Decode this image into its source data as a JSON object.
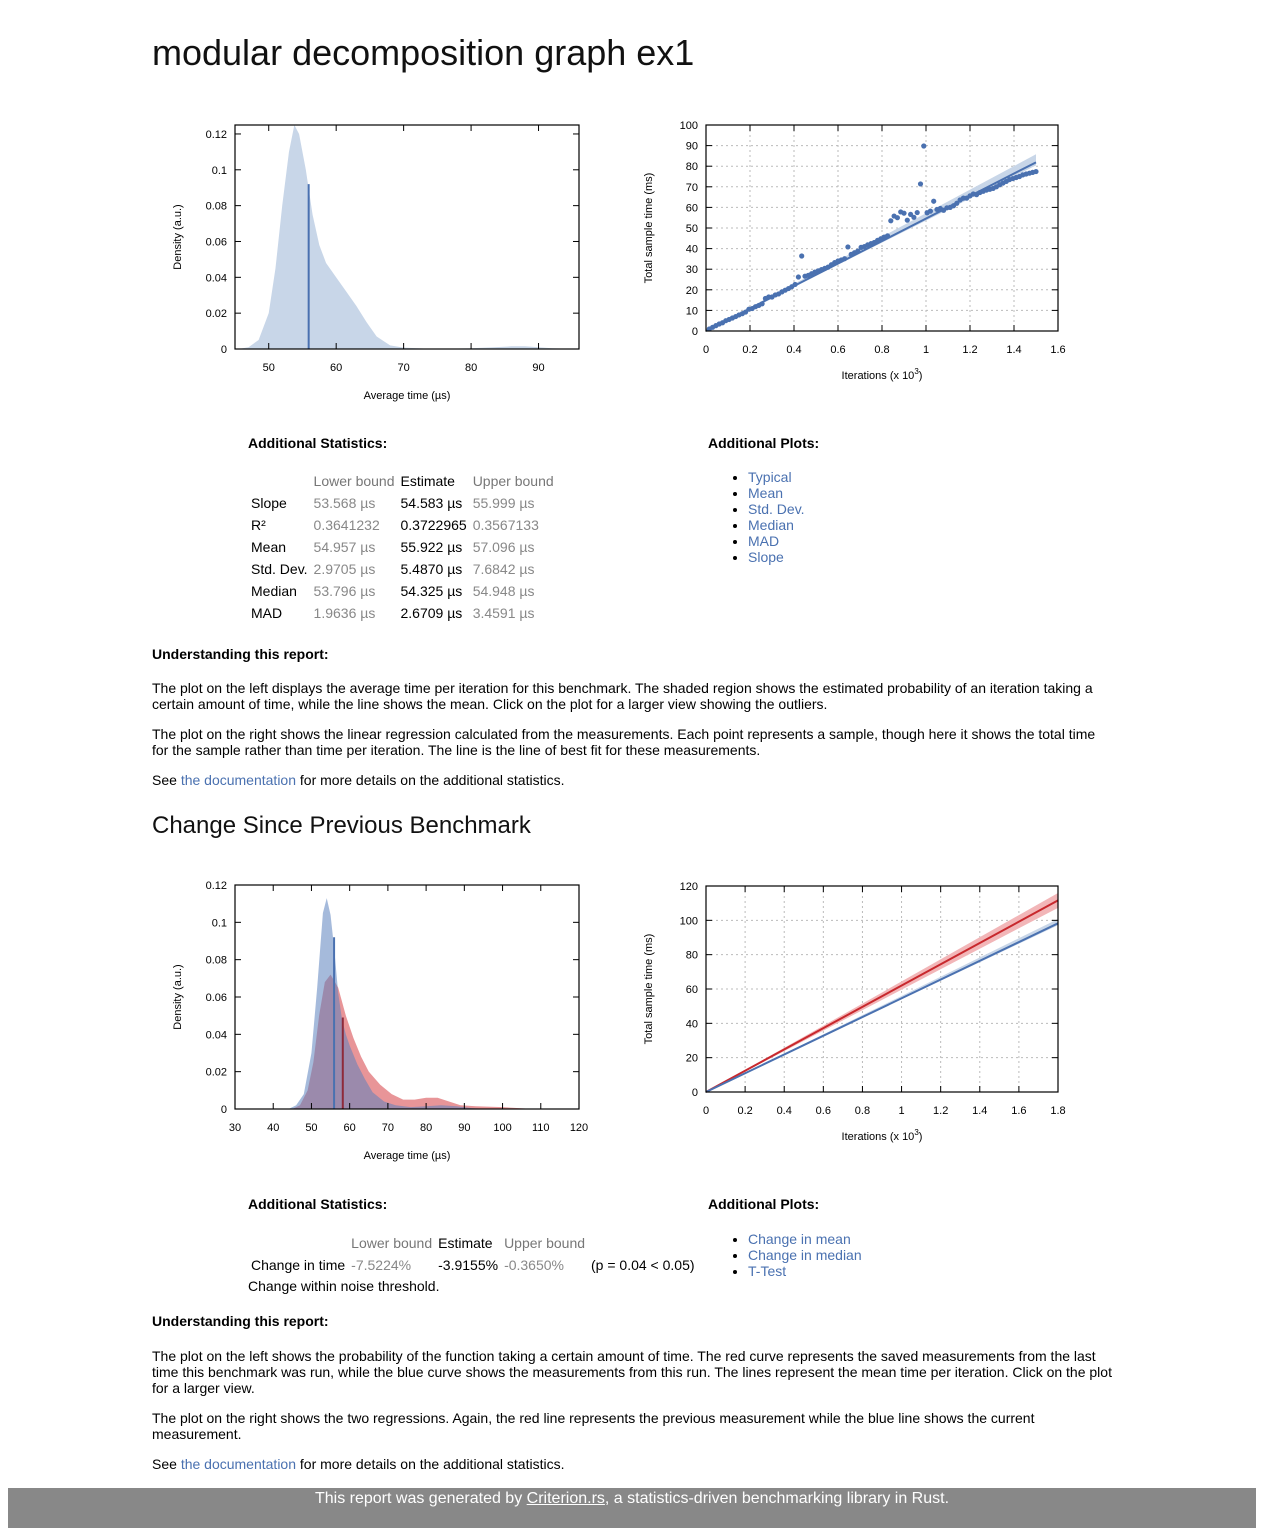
{
  "title": "modular decomposition graph ex1",
  "section1": {
    "stats_title": "Additional Statistics:",
    "plots_title": "Additional Plots:",
    "headers": [
      "",
      "Lower bound",
      "Estimate",
      "Upper bound"
    ],
    "rows": [
      {
        "name": "Slope",
        "lower": "53.568 µs",
        "estimate": "54.583 µs",
        "upper": "55.999 µs"
      },
      {
        "name": "R²",
        "lower": "0.3641232",
        "estimate": "0.3722965",
        "upper": "0.3567133"
      },
      {
        "name": "Mean",
        "lower": "54.957 µs",
        "estimate": "55.922 µs",
        "upper": "57.096 µs"
      },
      {
        "name": "Std. Dev.",
        "lower": "2.9705 µs",
        "estimate": "5.4870 µs",
        "upper": "7.6842 µs"
      },
      {
        "name": "Median",
        "lower": "53.796 µs",
        "estimate": "54.325 µs",
        "upper": "54.948 µs"
      },
      {
        "name": "MAD",
        "lower": "1.9636 µs",
        "estimate": "2.6709 µs",
        "upper": "3.4591 µs"
      }
    ],
    "links": [
      "Typical",
      "Mean",
      "Std. Dev.",
      "Median",
      "MAD",
      "Slope"
    ],
    "understanding_title": "Understanding this report:",
    "para1": "The plot on the left displays the average time per iteration for this benchmark. The shaded region shows the estimated probability of an iteration taking a certain amount of time, while the line shows the mean. Click on the plot for a larger view showing the outliers.",
    "para2": "The plot on the right shows the linear regression calculated from the measurements. Each point represents a sample, though here it shows the total time for the sample rather than time per iteration. The line is the line of best fit for these measurements.",
    "see_prefix": "See ",
    "see_link": "the documentation",
    "see_suffix": " for more details on the additional statistics."
  },
  "section2": {
    "heading": "Change Since Previous Benchmark",
    "stats_title": "Additional Statistics:",
    "plots_title": "Additional Plots:",
    "headers": [
      "",
      "Lower bound",
      "Estimate",
      "Upper bound",
      ""
    ],
    "row": {
      "name": "Change in time",
      "lower": "-7.5224%",
      "estimate": "-3.9155%",
      "upper": "-0.3650%",
      "p": "(p = 0.04 < 0.05)"
    },
    "verdict": "Change within noise threshold.",
    "links": [
      "Change in mean",
      "Change in median",
      "T-Test"
    ],
    "understanding_title": "Understanding this report:",
    "para1": "The plot on the left shows the probability of the function taking a certain amount of time. The red curve represents the saved measurements from the last time this benchmark was run, while the blue curve shows the measurements from this run. The lines represent the mean time per iteration. Click on the plot for a larger view.",
    "para2": "The plot on the right shows the two regressions. Again, the red line represents the previous measurement while the blue line shows the current measurement.",
    "see_prefix": "See ",
    "see_link": "the documentation",
    "see_suffix": " for more details on the additional statistics."
  },
  "footer": {
    "prefix": "This report was generated by ",
    "link": "Criterion.rs",
    "suffix": ", a statistics-driven benchmarking library in Rust."
  },
  "colors": {
    "blue": "#4a71b0",
    "red": "#c8282d",
    "blue_fill": "#c8d6e8",
    "red_fill": "#e58a8d"
  },
  "chart_data": [
    {
      "type": "area",
      "name": "pdf_small",
      "xlabel": "Average time (µs)",
      "ylabel": "Density (a.u.)",
      "xlim": [
        45,
        96
      ],
      "ylim": [
        0,
        0.125
      ],
      "xticks": [
        50,
        60,
        70,
        80,
        90
      ],
      "yticks": [
        0,
        0.02,
        0.04,
        0.06,
        0.08,
        0.1,
        0.12
      ],
      "x": [
        45.5,
        47,
        48.5,
        50,
        51,
        52,
        53,
        53.8,
        54.5,
        55.5,
        56.5,
        57.5,
        58.5,
        60,
        61.5,
        63,
        64.5,
        66,
        68,
        70,
        73,
        77,
        80,
        83,
        86,
        88,
        90,
        92,
        96
      ],
      "y": [
        0,
        0.001,
        0.005,
        0.02,
        0.045,
        0.08,
        0.11,
        0.125,
        0.12,
        0.1,
        0.075,
        0.058,
        0.048,
        0.04,
        0.032,
        0.024,
        0.015,
        0.007,
        0.002,
        0.0008,
        0.0003,
        0.0002,
        0.0004,
        0.0009,
        0.0015,
        0.0015,
        0.001,
        0.0004,
        0
      ],
      "mean": 55.922,
      "mean_y": 0.092
    },
    {
      "type": "scatter",
      "name": "regression_small",
      "xlabel": "Iterations (x 10^3)",
      "ylabel": "Total sample time (ms)",
      "xlim": [
        0,
        1.6
      ],
      "ylim": [
        0,
        100
      ],
      "xticks": [
        0,
        0.2,
        0.4,
        0.6,
        0.8,
        1,
        1.2,
        1.4,
        1.6
      ],
      "yticks": [
        0,
        10,
        20,
        30,
        40,
        50,
        60,
        70,
        80,
        90,
        100
      ],
      "x_points": [
        0.015,
        0.03,
        0.045,
        0.06,
        0.075,
        0.09,
        0.105,
        0.12,
        0.135,
        0.15,
        0.165,
        0.18,
        0.195,
        0.21,
        0.225,
        0.24,
        0.255,
        0.27,
        0.285,
        0.3,
        0.315,
        0.33,
        0.345,
        0.36,
        0.375,
        0.39,
        0.405,
        0.42,
        0.435,
        0.45,
        0.465,
        0.48,
        0.495,
        0.51,
        0.525,
        0.54,
        0.555,
        0.57,
        0.585,
        0.6,
        0.615,
        0.63,
        0.645,
        0.66,
        0.675,
        0.69,
        0.705,
        0.72,
        0.735,
        0.75,
        0.765,
        0.78,
        0.795,
        0.81,
        0.825,
        0.84,
        0.855,
        0.87,
        0.885,
        0.9,
        0.915,
        0.93,
        0.945,
        0.96,
        0.975,
        0.99,
        1.005,
        1.02,
        1.035,
        1.05,
        1.065,
        1.08,
        1.095,
        1.11,
        1.125,
        1.14,
        1.155,
        1.17,
        1.185,
        1.2,
        1.215,
        1.23,
        1.245,
        1.26,
        1.275,
        1.29,
        1.305,
        1.32,
        1.335,
        1.35,
        1.365,
        1.38,
        1.395,
        1.41,
        1.425,
        1.44,
        1.455,
        1.47,
        1.485,
        1.5
      ],
      "y_points": [
        1.0,
        1.8,
        2.6,
        3.4,
        4.0,
        5.0,
        5.6,
        6.3,
        7.0,
        7.8,
        8.4,
        9.2,
        10.6,
        10.9,
        11.8,
        12.4,
        13.2,
        15.8,
        16.5,
        16.5,
        17.5,
        18.0,
        19.0,
        19.8,
        20.6,
        21.5,
        22.6,
        26.2,
        36.4,
        26.6,
        27.0,
        27.8,
        28.6,
        29.2,
        29.8,
        30.4,
        31.0,
        32.2,
        33.2,
        34.0,
        34.5,
        35.1,
        40.8,
        37.2,
        38.0,
        38.8,
        40.6,
        41.0,
        41.8,
        42.4,
        43.0,
        44.0,
        44.8,
        45.6,
        46.2,
        53.5,
        55.8,
        55.0,
        57.8,
        57.2,
        53.8,
        56.6,
        55.2,
        57.5,
        71.4,
        89.8,
        57.4,
        58.2,
        63.0,
        59.0,
        59.5,
        58.6,
        59.8,
        60.0,
        60.8,
        62.0,
        63.6,
        64.5,
        64.5,
        65.6,
        66.5,
        66.2,
        67.2,
        67.8,
        68.4,
        68.8,
        69.2,
        70.0,
        71.0,
        71.8,
        72.6,
        73.5,
        74.0,
        74.5,
        75.0,
        75.8,
        76.2,
        76.6,
        77.0,
        77.4
      ],
      "fit_slope": 54.583
    },
    {
      "type": "area",
      "name": "pdf_comparison",
      "xlabel": "Average time (µs)",
      "ylabel": "Density (a.u.)",
      "xlim": [
        30,
        120
      ],
      "ylim": [
        0,
        0.12
      ],
      "xticks": [
        30,
        40,
        50,
        60,
        70,
        80,
        90,
        100,
        110,
        120
      ],
      "yticks": [
        0,
        0.02,
        0.04,
        0.06,
        0.08,
        0.1,
        0.12
      ],
      "series": [
        {
          "name": "base",
          "color": "red",
          "x": [
            45,
            47,
            49,
            50.5,
            52,
            53.5,
            55,
            57,
            59,
            61,
            63,
            65,
            68,
            71,
            74,
            77,
            80,
            83,
            86,
            89,
            93,
            100,
            106,
            110
          ],
          "y": [
            0,
            0.002,
            0.01,
            0.025,
            0.05,
            0.068,
            0.072,
            0.065,
            0.05,
            0.038,
            0.028,
            0.02,
            0.013,
            0.008,
            0.005,
            0.005,
            0.006,
            0.006,
            0.004,
            0.002,
            0.0015,
            0.001,
            0.0003,
            0
          ],
          "mean": 58.2,
          "mean_y": 0.049
        },
        {
          "name": "new",
          "color": "blue",
          "x": [
            44,
            46,
            48,
            50,
            51.5,
            53,
            54,
            55,
            56,
            57,
            58,
            59,
            60,
            62,
            64,
            66,
            69,
            72,
            76,
            80,
            84,
            88,
            92,
            96
          ],
          "y": [
            0,
            0.002,
            0.008,
            0.03,
            0.065,
            0.105,
            0.113,
            0.104,
            0.085,
            0.062,
            0.048,
            0.04,
            0.034,
            0.024,
            0.016,
            0.009,
            0.004,
            0.002,
            0.001,
            0.0015,
            0.002,
            0.0015,
            0.0005,
            0
          ],
          "mean": 55.922,
          "mean_y": 0.092
        }
      ]
    },
    {
      "type": "line",
      "name": "regression_comparison",
      "xlabel": "Iterations (x 10^3)",
      "ylabel": "Total sample time (ms)",
      "xlim": [
        0,
        1.8
      ],
      "ylim": [
        0,
        120
      ],
      "xticks": [
        0,
        0.2,
        0.4,
        0.6,
        0.8,
        1,
        1.2,
        1.4,
        1.6,
        1.8
      ],
      "yticks": [
        0,
        20,
        40,
        60,
        80,
        100,
        120
      ],
      "series": [
        {
          "name": "base",
          "color": "red",
          "slope": 62.0
        },
        {
          "name": "new",
          "color": "blue",
          "slope": 54.583
        }
      ]
    }
  ]
}
